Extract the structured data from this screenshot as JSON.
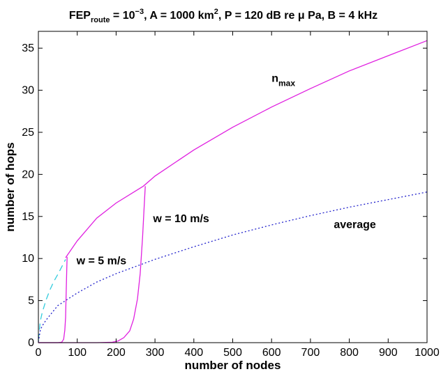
{
  "chart_data": {
    "type": "line",
    "title": {
      "prefix": "FEP",
      "prefix_sub": "route",
      "p1": " = 10",
      "p1_sup": "−3",
      "p2": ", A = 1000 km",
      "p2_sup": "2",
      "p3": ", P = 120 dB re μ Pa, B = 4 kHz"
    },
    "xlabel": "number of nodes",
    "ylabel": "number of hops",
    "xlim": [
      0,
      1000
    ],
    "ylim": [
      0,
      37
    ],
    "xticks": [
      0,
      100,
      200,
      300,
      400,
      500,
      600,
      700,
      800,
      900,
      1000
    ],
    "yticks": [
      0,
      5,
      10,
      15,
      20,
      25,
      30,
      35
    ],
    "grid": false,
    "series": [
      {
        "key": "nmax",
        "color": "#e020e0",
        "dash": "none",
        "x": [
          70,
          100,
          150,
          200,
          270,
          300,
          400,
          500,
          600,
          700,
          800,
          900,
          1000
        ],
        "y": [
          10.1,
          12.1,
          14.8,
          16.6,
          18.6,
          19.8,
          22.9,
          25.6,
          28.0,
          30.2,
          32.3,
          34.1,
          35.9
        ]
      },
      {
        "key": "nmax_small_n",
        "color": "#33ccdd",
        "dash": "9 6",
        "x": [
          0,
          5,
          10,
          20,
          30,
          40,
          50,
          60,
          70
        ],
        "y": [
          0.3,
          2.6,
          3.6,
          5.1,
          6.3,
          7.3,
          8.1,
          9.0,
          9.9
        ]
      },
      {
        "key": "average",
        "color": "#2222cc",
        "dash": "2 3",
        "x": [
          0,
          5,
          10,
          20,
          50,
          100,
          150,
          200,
          300,
          400,
          500,
          600,
          700,
          800,
          900,
          1000
        ],
        "y": [
          0.1,
          1.5,
          2.0,
          2.7,
          4.4,
          5.9,
          7.2,
          8.2,
          9.9,
          11.4,
          12.8,
          14.0,
          15.1,
          16.1,
          17.0,
          17.9
        ]
      },
      {
        "key": "w5",
        "color": "#e020e0",
        "dash": "none",
        "x": [
          0,
          50,
          60,
          65,
          68,
          70,
          71,
          72,
          73,
          74
        ],
        "y": [
          0,
          0,
          0.05,
          0.4,
          1.5,
          3.0,
          4.8,
          6.8,
          8.8,
          10.2
        ]
      },
      {
        "key": "w10",
        "color": "#e020e0",
        "dash": "none",
        "x": [
          0,
          150,
          190,
          205,
          220,
          235,
          245,
          255,
          262,
          268,
          272,
          275
        ],
        "y": [
          0,
          0,
          0.05,
          0.2,
          0.6,
          1.4,
          2.8,
          5.2,
          8.2,
          12.5,
          16.0,
          18.6
        ]
      }
    ],
    "annotations": [
      {
        "key": "nmax_label",
        "text": "n",
        "sub": "max",
        "x": 600,
        "y": 31
      },
      {
        "key": "average_label",
        "text": "average",
        "x": 760,
        "y": 13.6
      },
      {
        "key": "w10_label",
        "text": "w = 10 m/s",
        "x": 295,
        "y": 14.3
      },
      {
        "key": "w5_label",
        "text": "w = 5 m/s",
        "x": 98,
        "y": 9.3
      }
    ]
  }
}
